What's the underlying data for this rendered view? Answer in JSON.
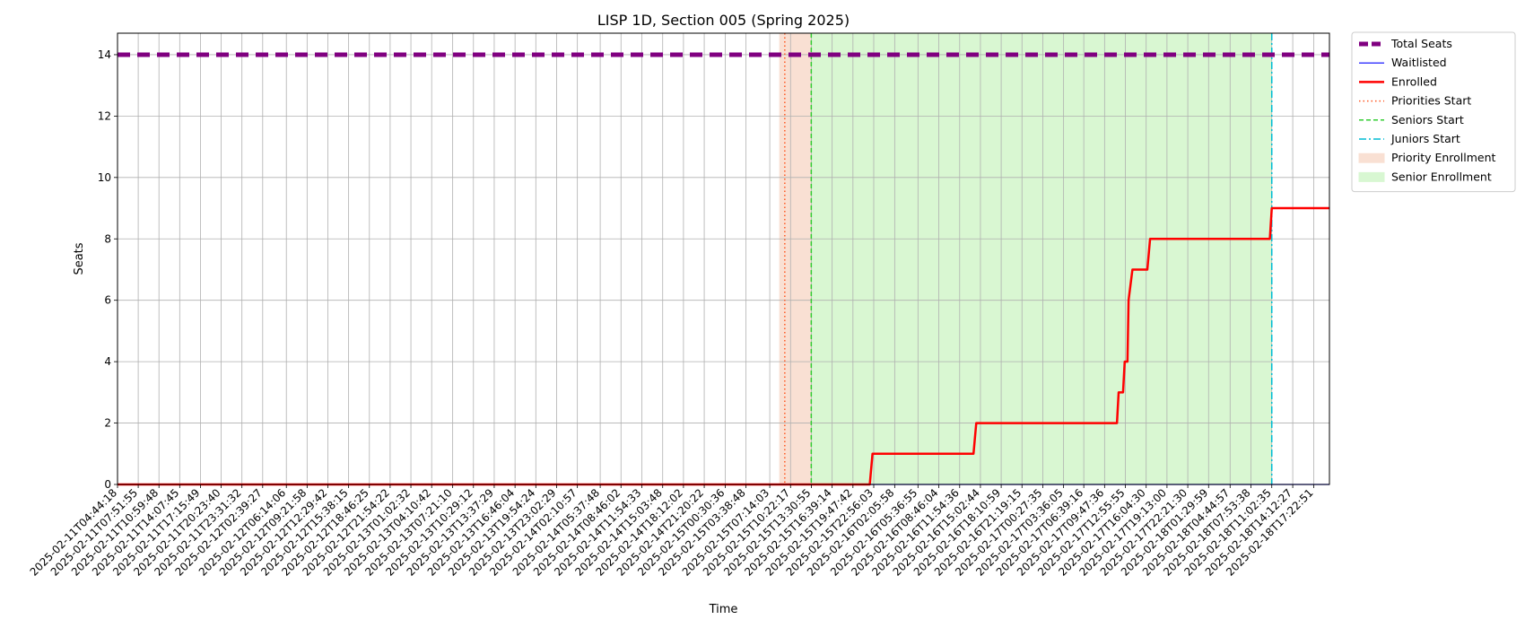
{
  "chart_data": {
    "type": "line",
    "title": "LISP 1D, Section 005 (Spring 2025)",
    "xlabel": "Time",
    "ylabel": "Seats",
    "ylim": [
      0,
      14.7
    ],
    "yticks": [
      0,
      2,
      4,
      6,
      8,
      10,
      12,
      14
    ],
    "grid": true,
    "legend_position": "outside-top-right",
    "x_range": [
      "2025-02-11T04:44:18",
      "2025-02-18T19:45:00"
    ],
    "x_ticks": [
      "2025-02-11T04:44:18",
      "2025-02-11T07:51:55",
      "2025-02-11T10:59:48",
      "2025-02-11T14:07:45",
      "2025-02-11T17:15:49",
      "2025-02-11T20:23:40",
      "2025-02-11T23:31:32",
      "2025-02-12T02:39:27",
      "2025-02-12T06:14:06",
      "2025-02-12T09:21:58",
      "2025-02-12T12:29:42",
      "2025-02-12T15:38:15",
      "2025-02-12T18:46:25",
      "2025-02-12T21:54:22",
      "2025-02-13T01:02:32",
      "2025-02-13T04:10:42",
      "2025-02-13T07:21:10",
      "2025-02-13T10:29:12",
      "2025-02-13T13:37:29",
      "2025-02-13T16:46:04",
      "2025-02-13T19:54:24",
      "2025-02-13T23:02:29",
      "2025-02-14T02:10:57",
      "2025-02-14T05:37:48",
      "2025-02-14T08:46:02",
      "2025-02-14T11:54:33",
      "2025-02-14T15:03:48",
      "2025-02-14T18:12:02",
      "2025-02-14T21:20:22",
      "2025-02-15T00:30:36",
      "2025-02-15T03:38:48",
      "2025-02-15T07:14:03",
      "2025-02-15T10:22:17",
      "2025-02-15T13:30:55",
      "2025-02-15T16:39:14",
      "2025-02-15T19:47:42",
      "2025-02-15T22:56:03",
      "2025-02-16T02:05:58",
      "2025-02-16T05:36:55",
      "2025-02-16T08:46:04",
      "2025-02-16T11:54:36",
      "2025-02-16T15:02:44",
      "2025-02-16T18:10:59",
      "2025-02-16T21:19:15",
      "2025-02-17T00:27:35",
      "2025-02-17T03:36:05",
      "2025-02-17T06:39:16",
      "2025-02-17T09:47:36",
      "2025-02-17T12:55:55",
      "2025-02-17T16:04:30",
      "2025-02-17T19:13:00",
      "2025-02-17T22:21:30",
      "2025-02-18T01:29:59",
      "2025-02-18T04:44:57",
      "2025-02-18T07:53:38",
      "2025-02-18T11:02:35",
      "2025-02-18T14:12:27",
      "2025-02-18T17:22:51"
    ],
    "series": [
      {
        "name": "Total Seats",
        "color": "#800080",
        "style": "dashed-thick",
        "x": [
          "2025-02-11T04:44:18",
          "2025-02-18T19:45:00"
        ],
        "y": [
          14,
          14
        ]
      },
      {
        "name": "Waitlisted",
        "color": "#0000ff",
        "style": "solid-thin",
        "x": [
          "2025-02-11T04:44:18",
          "2025-02-18T19:45:00"
        ],
        "y": [
          0,
          0
        ]
      },
      {
        "name": "Enrolled",
        "color": "#ff0000",
        "style": "solid-thick",
        "x": [
          "2025-02-11T04:44:18",
          "2025-02-15T22:20:00",
          "2025-02-15T22:45:00",
          "2025-02-16T14:00:00",
          "2025-02-16T14:25:00",
          "2025-02-17T11:40:00",
          "2025-02-17T11:55:00",
          "2025-02-17T12:35:00",
          "2025-02-17T12:50:00",
          "2025-02-17T13:15:00",
          "2025-02-17T13:25:00",
          "2025-02-17T14:00:00",
          "2025-02-17T16:15:00",
          "2025-02-17T16:40:00",
          "2025-02-18T10:45:00",
          "2025-02-18T11:02:35",
          "2025-02-18T19:45:00"
        ],
        "y": [
          0,
          0,
          1,
          1,
          2,
          2,
          3,
          3,
          4,
          4,
          6,
          7,
          7,
          8,
          8,
          9,
          9
        ]
      }
    ],
    "vlines": [
      {
        "name": "Priorities Start",
        "color": "#ff5722",
        "style": "dotted",
        "x": "2025-02-15T09:30:00"
      },
      {
        "name": "Seniors Start",
        "color": "#32cd32",
        "style": "dashed",
        "x": "2025-02-15T13:30:00"
      },
      {
        "name": "Juniors Start",
        "color": "#00bcd4",
        "style": "dashdot",
        "x": "2025-02-18T11:02:35"
      }
    ],
    "spans": [
      {
        "name": "Priority Enrollment",
        "color": "#f4c2a8",
        "x0": "2025-02-15T08:40:00",
        "x1": "2025-02-15T13:30:00"
      },
      {
        "name": "Senior Enrollment",
        "color": "#b3f0a6",
        "x0": "2025-02-15T13:30:00",
        "x1": "2025-02-18T11:02:35"
      }
    ],
    "legend": [
      {
        "label": "Total Seats",
        "kind": "line",
        "ref": "Total Seats"
      },
      {
        "label": "Waitlisted",
        "kind": "line",
        "ref": "Waitlisted"
      },
      {
        "label": "Enrolled",
        "kind": "line",
        "ref": "Enrolled"
      },
      {
        "label": "Priorities Start",
        "kind": "line",
        "ref": "Priorities Start"
      },
      {
        "label": "Seniors Start",
        "kind": "line",
        "ref": "Seniors Start"
      },
      {
        "label": "Juniors Start",
        "kind": "line",
        "ref": "Juniors Start"
      },
      {
        "label": "Priority Enrollment",
        "kind": "patch",
        "ref": "Priority Enrollment"
      },
      {
        "label": "Senior Enrollment",
        "kind": "patch",
        "ref": "Senior Enrollment"
      }
    ]
  }
}
